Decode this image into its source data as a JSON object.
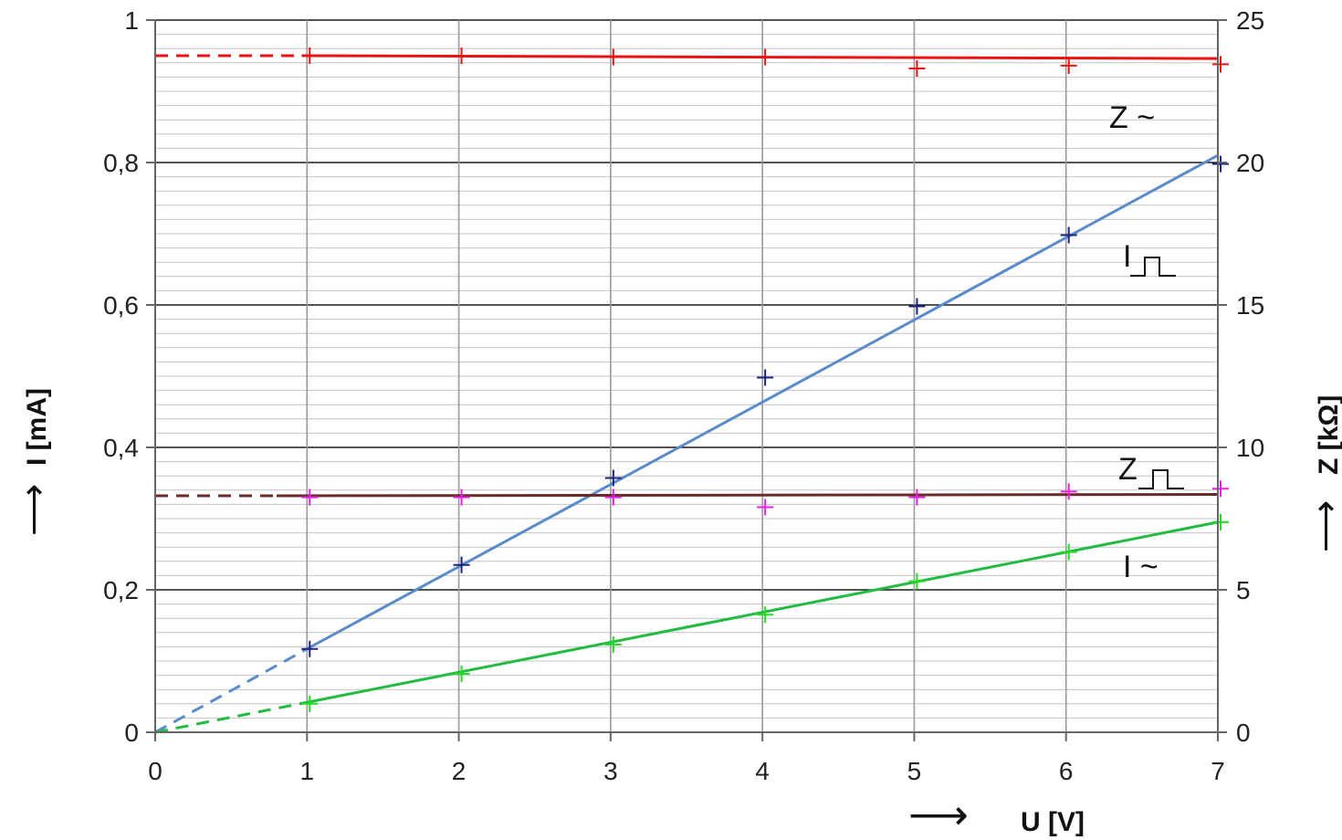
{
  "chart_data": {
    "type": "line",
    "grid": true,
    "x": [
      1,
      2,
      3,
      4,
      5,
      6,
      7
    ],
    "xlim": [
      0,
      7
    ],
    "xticks": [
      "0",
      "1",
      "2",
      "3",
      "4",
      "5",
      "6",
      "7"
    ],
    "xlabel": "U [V]",
    "ylim_left": [
      0,
      1
    ],
    "yticks_left": [
      "0",
      "0,2",
      "0,4",
      "0,6",
      "0,8",
      "1"
    ],
    "ylabel_left": "I [mA]",
    "ylim_right": [
      0,
      25
    ],
    "yticks_right": [
      "0",
      "5",
      "10",
      "15",
      "20",
      "25"
    ],
    "ylabel_right": "Z [kΩ]",
    "arrow_symbol": "⟶",
    "series": [
      {
        "name": "Z ~",
        "axis": "right",
        "color": "#ee1111",
        "marker_color": "#ee1111",
        "points": [
          23.75,
          23.75,
          23.7,
          23.7,
          23.3,
          23.4,
          23.45
        ],
        "fit": {
          "from": 1,
          "to": 7,
          "y0": 23.75,
          "y1": 23.65
        },
        "fit_dashed": {
          "from": 0,
          "to": 1,
          "y0": 23.75,
          "y1": 23.75
        }
      },
      {
        "name": "I",
        "label_prefix": "I",
        "label_glyph": "pulse",
        "axis": "left",
        "color": "#5b8bc9",
        "marker_color": "#1a237e",
        "points": [
          0.117,
          0.235,
          0.357,
          0.498,
          0.598,
          0.698,
          0.798
        ],
        "fit": {
          "from": 1,
          "to": 7,
          "y0": 0.117,
          "y1": 0.81
        },
        "fit_dashed": {
          "from": 0,
          "to": 1,
          "y0": 0,
          "y1": 0.117
        }
      },
      {
        "name": "Z",
        "label_prefix": "Z",
        "label_glyph": "pulse",
        "axis": "right",
        "color": "#6b2a2a",
        "marker_color": "#e91ee9",
        "points": [
          8.25,
          8.25,
          8.25,
          7.9,
          8.25,
          8.45,
          8.55
        ],
        "fit": {
          "from": 0.8,
          "to": 7,
          "y0": 8.3,
          "y1": 8.35
        },
        "fit_dashed": {
          "from": 0,
          "to": 0.8,
          "y0": 8.3,
          "y1": 8.3
        }
      },
      {
        "name": "I ~",
        "axis": "left",
        "color": "#22bb44",
        "marker_color": "#22dd22",
        "points": [
          0.04,
          0.082,
          0.123,
          0.165,
          0.212,
          0.253,
          0.295
        ],
        "fit": {
          "from": 1,
          "to": 7,
          "y0": 0.042,
          "y1": 0.295
        },
        "fit_dashed": {
          "from": 0,
          "to": 1,
          "y0": 0,
          "y1": 0.042
        }
      }
    ]
  }
}
